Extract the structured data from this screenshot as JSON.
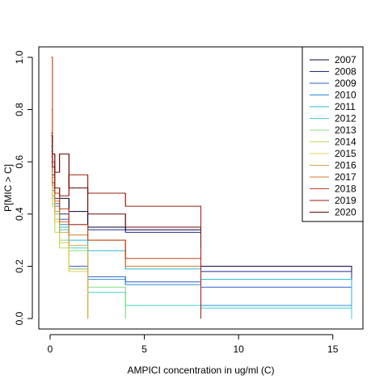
{
  "chart_data": {
    "type": "line",
    "step": true,
    "title": "",
    "xlabel": "AMPICI concentration in ug/ml (C)",
    "ylabel": "P[MIC > C]",
    "xlim": [
      -0.6,
      16.6
    ],
    "ylim": [
      -0.04,
      1.04
    ],
    "x_ticks": [
      0,
      5,
      10,
      15
    ],
    "x_tick_labels": [
      "0",
      "5",
      "10",
      "15"
    ],
    "y_ticks": [
      0.0,
      0.2,
      0.4,
      0.6,
      0.8,
      1.0
    ],
    "y_tick_labels": [
      "0.0",
      "0.2",
      "0.4",
      "0.6",
      "0.8",
      "1.0"
    ],
    "grid": false,
    "legend_position": "top-right",
    "series": [
      {
        "name": "2007",
        "color": "#08003a",
        "x": [
          0.06,
          0.125,
          0.25,
          0.5,
          1,
          2,
          4,
          8,
          16
        ],
        "y": [
          0.71,
          0.55,
          0.5,
          0.46,
          0.41,
          0.35,
          0.34,
          0.2,
          0.0
        ]
      },
      {
        "name": "2008",
        "color": "#1a2a8a",
        "x": [
          0.06,
          0.125,
          0.25,
          0.5,
          1,
          2,
          4,
          8,
          16
        ],
        "y": [
          0.66,
          0.52,
          0.46,
          0.4,
          0.36,
          0.34,
          0.33,
          0.18,
          0.0
        ]
      },
      {
        "name": "2009",
        "color": "#2f5fcf",
        "x": [
          0.06,
          0.125,
          0.25,
          0.5,
          1,
          2,
          4,
          8,
          16
        ],
        "y": [
          0.62,
          0.49,
          0.44,
          0.38,
          0.2,
          0.16,
          0.14,
          0.12,
          0.0
        ]
      },
      {
        "name": "2010",
        "color": "#2a8ed2",
        "x": [
          0.06,
          0.125,
          0.25,
          0.5,
          1,
          2,
          4,
          8,
          16
        ],
        "y": [
          0.64,
          0.5,
          0.43,
          0.36,
          0.19,
          0.15,
          0.13,
          0.05,
          0.0
        ]
      },
      {
        "name": "2011",
        "color": "#28b7d3",
        "x": [
          0.06,
          0.125,
          0.25,
          0.5,
          1,
          2,
          4,
          8,
          16
        ],
        "y": [
          0.6,
          0.47,
          0.41,
          0.35,
          0.3,
          0.26,
          0.19,
          0.15,
          0.0
        ]
      },
      {
        "name": "2012",
        "color": "#3fd2c0",
        "x": [
          0.06,
          0.125,
          0.25,
          0.5,
          1,
          2,
          4,
          8,
          16
        ],
        "y": [
          0.58,
          0.46,
          0.4,
          0.34,
          0.27,
          0.1,
          0.05,
          0.04,
          0.0
        ]
      },
      {
        "name": "2013",
        "color": "#7fe07f",
        "x": [
          0.06,
          0.125,
          0.25,
          0.5,
          1,
          2,
          4
        ],
        "y": [
          0.55,
          0.44,
          0.38,
          0.3,
          0.26,
          0.12,
          0.0
        ]
      },
      {
        "name": "2014",
        "color": "#b7e060",
        "x": [
          0.06,
          0.125,
          0.25,
          0.5,
          1,
          2
        ],
        "y": [
          0.52,
          0.43,
          0.33,
          0.27,
          0.19,
          0.0
        ]
      },
      {
        "name": "2015",
        "color": "#e6cf55",
        "x": [
          0.06,
          0.125,
          0.25,
          0.5,
          1,
          2
        ],
        "y": [
          0.69,
          0.46,
          0.37,
          0.29,
          0.18,
          0.0
        ]
      },
      {
        "name": "2016",
        "color": "#d5a648",
        "x": [
          0.06,
          0.125,
          0.25,
          0.5,
          1,
          2
        ],
        "y": [
          0.8,
          0.54,
          0.41,
          0.33,
          0.28,
          0.0
        ]
      },
      {
        "name": "2017",
        "color": "#d07a2e",
        "x": [
          0.06,
          0.125,
          0.25,
          0.5,
          1,
          2,
          4,
          8
        ],
        "y": [
          0.68,
          0.51,
          0.45,
          0.37,
          0.32,
          0.3,
          0.2,
          0.02
        ]
      },
      {
        "name": "2018",
        "color": "#c0461c",
        "x": [
          0.06,
          0.125,
          0.25,
          0.5,
          1,
          2,
          4,
          8
        ],
        "y": [
          1.0,
          0.6,
          0.48,
          0.42,
          0.36,
          0.3,
          0.23,
          0.05
        ]
      },
      {
        "name": "2019",
        "color": "#9a1d0c",
        "x": [
          0.06,
          0.125,
          0.25,
          0.5,
          1,
          2,
          4,
          8
        ],
        "y": [
          0.7,
          0.58,
          0.5,
          0.47,
          0.55,
          0.48,
          0.43,
          0.0
        ]
      },
      {
        "name": "2020",
        "color": "#6b0a06",
        "x": [
          0.06,
          0.125,
          0.25,
          0.5,
          1,
          2,
          4,
          8
        ],
        "y": [
          0.7,
          0.63,
          0.56,
          0.63,
          0.5,
          0.4,
          0.35,
          0.27
        ]
      }
    ]
  }
}
